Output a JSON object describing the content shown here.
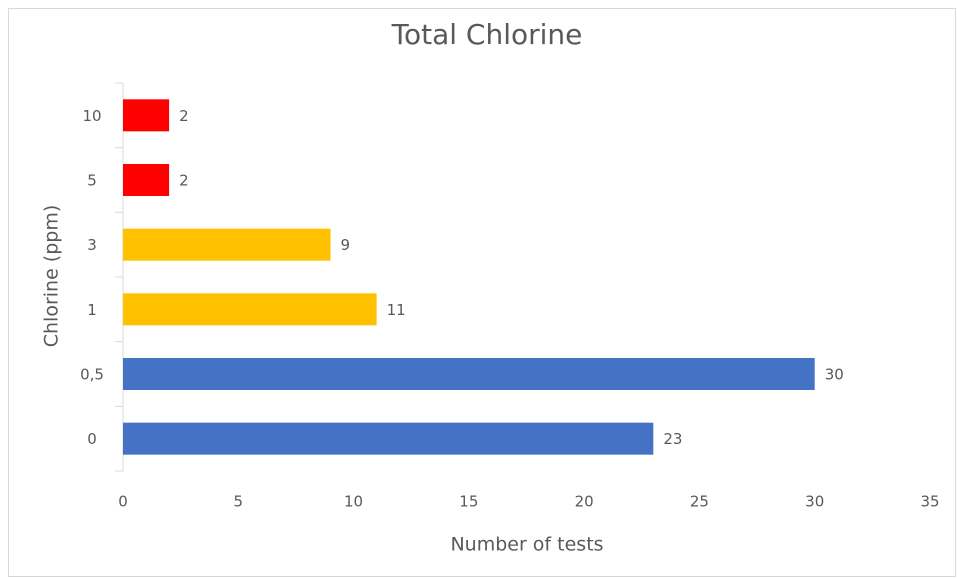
{
  "chart_data": {
    "type": "hbar",
    "title": "Total Chlorine",
    "x_label": "Number of tests",
    "y_label": "Chlorine (ppm)",
    "categories": [
      "0",
      "0,5",
      "1",
      "3",
      "5",
      "10"
    ],
    "values": [
      23,
      30,
      11,
      9,
      2,
      2
    ],
    "colors": [
      "#4472c4",
      "#4472c4",
      "#ffc000",
      "#ffc000",
      "#ff0000",
      "#ff0000"
    ],
    "xlim": [
      0,
      35
    ],
    "xticks": [
      0,
      5,
      10,
      15,
      20,
      25,
      30,
      35
    ],
    "grid": false
  }
}
